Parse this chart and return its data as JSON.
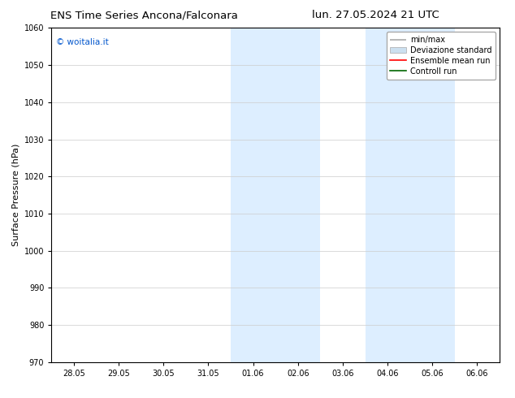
{
  "title_left": "ENS Time Series Ancona/Falconara",
  "title_right": "lun. 27.05.2024 21 UTC",
  "ylabel": "Surface Pressure (hPa)",
  "ylim": [
    970,
    1060
  ],
  "yticks": [
    970,
    980,
    990,
    1000,
    1010,
    1020,
    1030,
    1040,
    1050,
    1060
  ],
  "xtick_labels": [
    "28.05",
    "29.05",
    "30.05",
    "31.05",
    "01.06",
    "02.06",
    "03.06",
    "04.06",
    "05.06",
    "06.06"
  ],
  "shaded_regions": [
    {
      "xstart": 4,
      "xend": 6
    },
    {
      "xstart": 7,
      "xend": 9
    }
  ],
  "shaded_color": "#ddeeff",
  "watermark_text": "© woitalia.it",
  "watermark_color": "#0055cc",
  "legend_items": [
    {
      "label": "min/max",
      "color": "#aaaaaa",
      "lw": 1.2
    },
    {
      "label": "Deviazione standard",
      "color": "#cce0f0",
      "lw": 6
    },
    {
      "label": "Ensemble mean run",
      "color": "#ff0000",
      "lw": 1.2
    },
    {
      "label": "Controll run",
      "color": "#006600",
      "lw": 1.2
    }
  ],
  "bg_color": "#ffffff",
  "grid_color": "#cccccc",
  "title_fontsize": 9.5,
  "tick_fontsize": 7,
  "ylabel_fontsize": 8,
  "watermark_fontsize": 7.5,
  "legend_fontsize": 7
}
